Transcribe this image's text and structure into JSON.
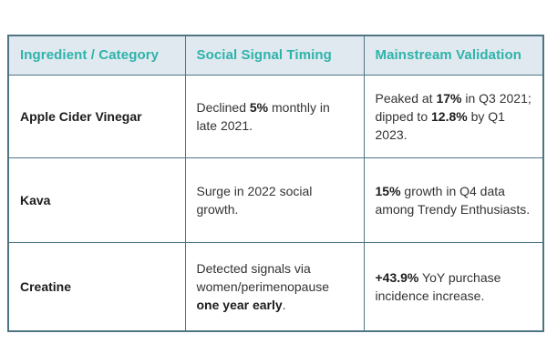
{
  "colors": {
    "accent": "#2fb3ab",
    "border": "#4f7584",
    "header_bg": "#dfe9ef",
    "body_text": "#333333"
  },
  "table": {
    "headers": [
      "Ingredient / Category",
      "Social Signal Timing",
      "Mainstream Validation"
    ],
    "rows": [
      {
        "ingredient": "Apple Cider Vinegar",
        "timing": [
          {
            "t": "Declined "
          },
          {
            "t": "5%",
            "b": true
          },
          {
            "t": " monthly in late 2021."
          }
        ],
        "validation": [
          {
            "t": "Peaked at "
          },
          {
            "t": "17%",
            "b": true
          },
          {
            "t": " in Q3 2021; dipped to "
          },
          {
            "t": "12.8%",
            "b": true
          },
          {
            "t": " by Q1 2023."
          }
        ]
      },
      {
        "ingredient": "Kava",
        "timing": [
          {
            "t": "Surge in 2022 social growth."
          }
        ],
        "validation": [
          {
            "t": "15%",
            "b": true
          },
          {
            "t": " growth in Q4 data among Trendy Enthusiasts."
          }
        ]
      },
      {
        "ingredient": "Creatine",
        "timing": [
          {
            "t": "Detected signals via women/perimenopause "
          },
          {
            "t": "one year early",
            "b": true
          },
          {
            "t": "."
          }
        ],
        "validation": [
          {
            "t": "+43.9%",
            "b": true
          },
          {
            "t": " YoY purchase incidence increase."
          }
        ]
      }
    ]
  }
}
